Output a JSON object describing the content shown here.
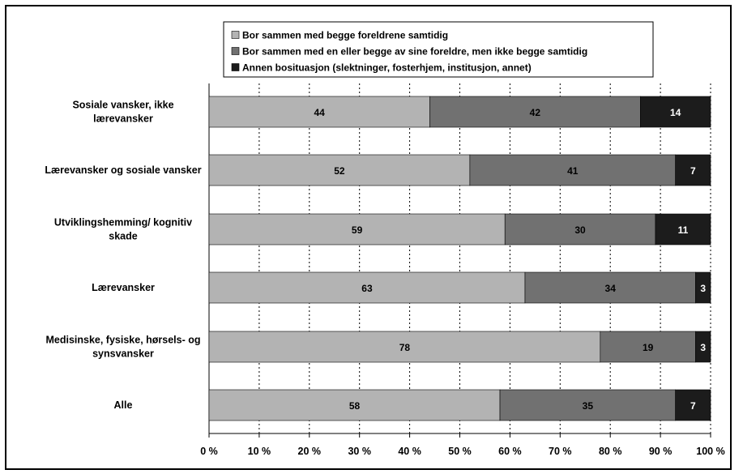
{
  "chart_data": {
    "type": "bar",
    "orientation": "horizontal",
    "stacked": true,
    "percent": true,
    "categories": [
      "Sosiale vansker, ikke lærevansker",
      "Lærevansker og sosiale vansker",
      "Utviklingshemming/ kognitiv skade",
      "Lærevansker",
      "Medisinske, fysiske, hørsels- og synsvansker",
      "Alle"
    ],
    "series": [
      {
        "name": "Bor sammen med begge foreldrene samtidig",
        "color": "#b3b3b3",
        "label_color": "#000000",
        "values": [
          44,
          52,
          59,
          63,
          78,
          58
        ]
      },
      {
        "name": "Bor sammen med en eller begge av sine foreldre, men ikke begge samtidig",
        "color": "#717171",
        "label_color": "#000000",
        "values": [
          42,
          41,
          30,
          34,
          19,
          35
        ]
      },
      {
        "name": "Annen bosituasjon (slektninger, fosterhjem, institusjon, annet)",
        "color": "#1c1c1c",
        "label_color": "#ffffff",
        "values": [
          14,
          7,
          11,
          3,
          3,
          7
        ]
      }
    ],
    "xlim": [
      0,
      100
    ],
    "xticks": [
      "0 %",
      "10 %",
      "20 %",
      "30 %",
      "40 %",
      "50 %",
      "60 %",
      "70 %",
      "80 %",
      "90 %",
      "100 %"
    ],
    "grid": "vertical dotted",
    "legend_position": "top"
  }
}
